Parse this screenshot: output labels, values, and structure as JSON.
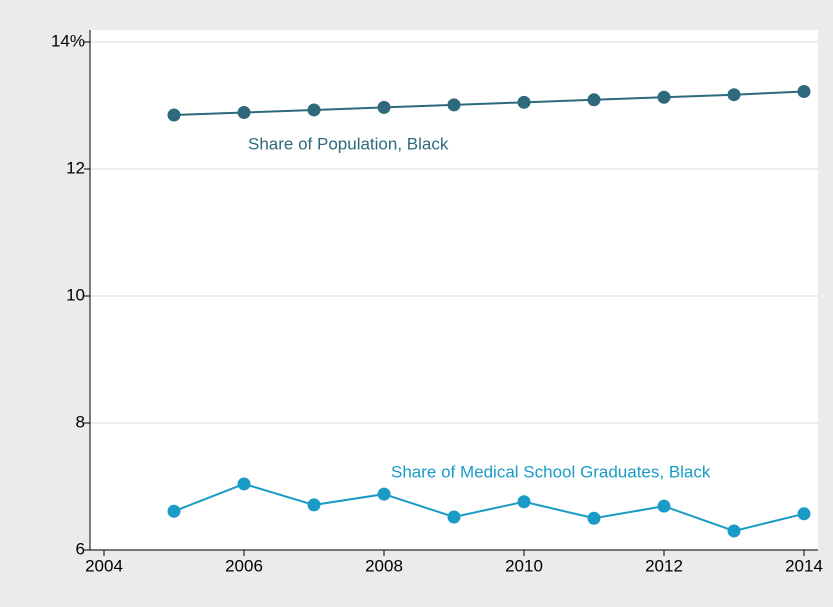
{
  "chart_data": {
    "type": "line",
    "x": [
      2005,
      2006,
      2007,
      2008,
      2009,
      2010,
      2011,
      2012,
      2013,
      2014
    ],
    "series": [
      {
        "name": "Share of Population, Black",
        "color": "#2e6a7c",
        "values": [
          12.85,
          12.89,
          12.93,
          12.97,
          13.01,
          13.05,
          13.09,
          13.13,
          13.17,
          13.22
        ]
      },
      {
        "name": "Share of Medical School Graduates, Black",
        "color": "#1a9bc6",
        "values": [
          6.61,
          7.04,
          6.71,
          6.88,
          6.52,
          6.76,
          6.5,
          6.69,
          6.3,
          6.57
        ]
      }
    ],
    "xlim": [
      2003.8,
      2014.2
    ],
    "xticks": [
      2004,
      2006,
      2008,
      2010,
      2012,
      2014
    ],
    "ylim": [
      6,
      14
    ],
    "yticks": [
      6,
      8,
      10,
      12,
      {
        "value": 14,
        "label": "14%"
      }
    ],
    "grid": true
  }
}
